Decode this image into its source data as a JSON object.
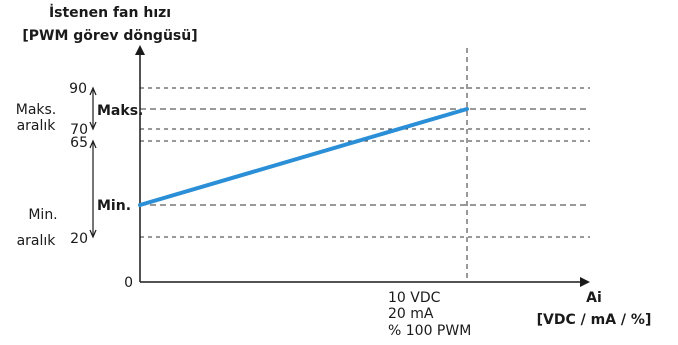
{
  "y_axis_title": [
    "İstenen fan hızı",
    "[PWM görev döngüsü]"
  ],
  "x_axis_title": [
    "Ai",
    "[VDC / mA / %]"
  ],
  "y_ticks": [
    "90",
    "70",
    "65",
    "20",
    "0"
  ],
  "x_max_label": [
    "10 VDC",
    "20 mA",
    "% 100 PWM"
  ],
  "ranges": {
    "max": [
      "Maks.",
      "aralık"
    ],
    "min": [
      "Min.",
      "aralık"
    ]
  },
  "markers": {
    "max": "Maks.",
    "min": "Min."
  },
  "colors": {
    "line": "#2a8fd6",
    "axis": "#1a1a1a",
    "guide": "#333333"
  }
}
